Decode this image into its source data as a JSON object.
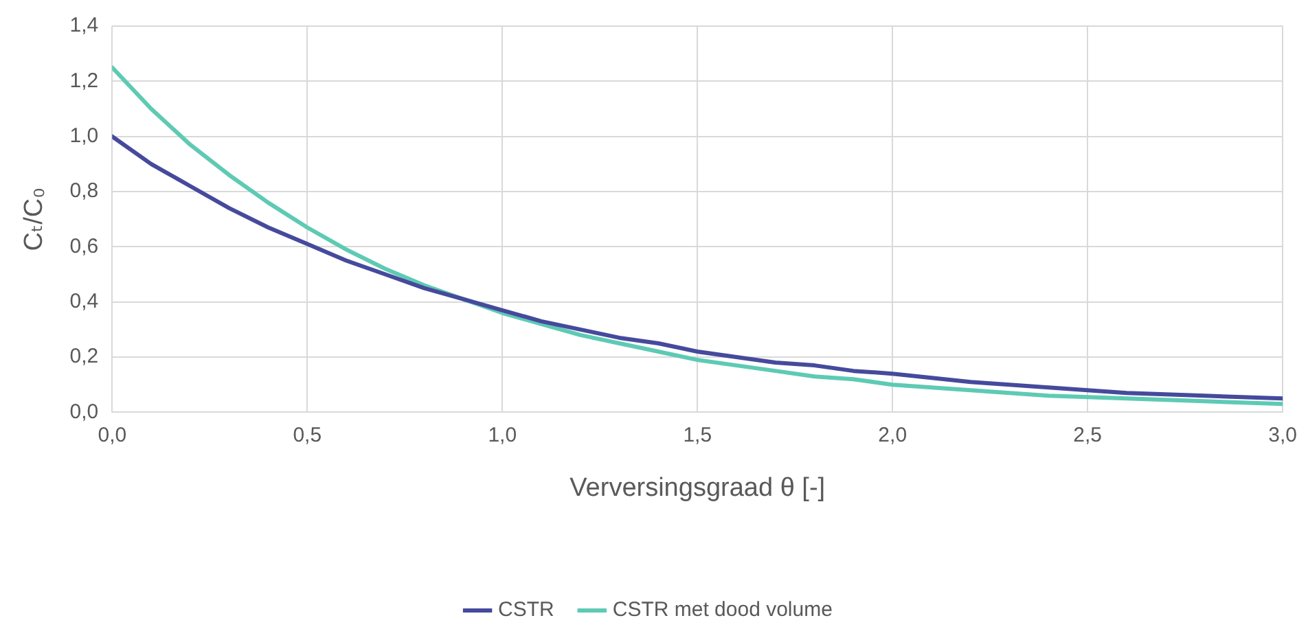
{
  "chart_data": {
    "type": "line",
    "xlabel": "Verversingsgraad θ [-]",
    "ylabel": "Cₜ/C₀",
    "x": [
      0,
      0.1,
      0.2,
      0.3,
      0.4,
      0.5,
      0.6,
      0.7,
      0.8,
      0.9,
      1.0,
      1.1,
      1.2,
      1.3,
      1.4,
      1.5,
      1.6,
      1.7,
      1.8,
      1.9,
      2.0,
      2.2,
      2.4,
      2.6,
      2.8,
      3.0
    ],
    "series": [
      {
        "name": "CSTR",
        "color": "#454a9c",
        "values": [
          1.0,
          0.9,
          0.82,
          0.74,
          0.67,
          0.61,
          0.55,
          0.5,
          0.45,
          0.41,
          0.37,
          0.33,
          0.3,
          0.27,
          0.25,
          0.22,
          0.2,
          0.18,
          0.17,
          0.15,
          0.14,
          0.11,
          0.09,
          0.07,
          0.06,
          0.05
        ]
      },
      {
        "name": "CSTR met dood volume",
        "color": "#5ecab4",
        "values": [
          1.25,
          1.1,
          0.97,
          0.86,
          0.76,
          0.67,
          0.59,
          0.52,
          0.46,
          0.41,
          0.36,
          0.32,
          0.28,
          0.25,
          0.22,
          0.19,
          0.17,
          0.15,
          0.13,
          0.12,
          0.1,
          0.08,
          0.06,
          0.05,
          0.04,
          0.03
        ]
      }
    ],
    "xlim": [
      0,
      3.0
    ],
    "xticks": [
      {
        "value": 0,
        "label": "0,0"
      },
      {
        "value": 0.5,
        "label": "0,5"
      },
      {
        "value": 1.0,
        "label": "1,0"
      },
      {
        "value": 1.5,
        "label": "1,5"
      },
      {
        "value": 2.0,
        "label": "2,0"
      },
      {
        "value": 2.5,
        "label": "2,5"
      },
      {
        "value": 3.0,
        "label": "3,0"
      }
    ],
    "ylim": [
      0,
      1.4
    ],
    "yticks": [
      {
        "value": 0,
        "label": "0,0"
      },
      {
        "value": 0.2,
        "label": "0,2"
      },
      {
        "value": 0.4,
        "label": "0,4"
      },
      {
        "value": 0.6,
        "label": "0,6"
      },
      {
        "value": 0.8,
        "label": "0,8"
      },
      {
        "value": 1.0,
        "label": "1,0"
      },
      {
        "value": 1.2,
        "label": "1,2"
      },
      {
        "value": 1.4,
        "label": "1,4"
      }
    ],
    "grid": true,
    "legend": "bottom",
    "marker": "none",
    "line_style": "solid"
  }
}
